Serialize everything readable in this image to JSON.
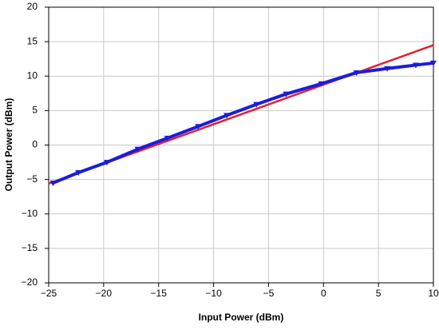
{
  "chart_data": {
    "type": "line",
    "x_label": "Input Power (dBm)",
    "y_label": "Output Power (dBm)",
    "xlim": [
      -25,
      10
    ],
    "ylim": [
      -20,
      20
    ],
    "xticks": [
      {
        "value": -25,
        "label": "−25"
      },
      {
        "value": -20,
        "label": "−20"
      },
      {
        "value": -15,
        "label": "−15"
      },
      {
        "value": -10,
        "label": "−10"
      },
      {
        "value": -5,
        "label": "−5"
      },
      0,
      5,
      10
    ],
    "yticks": [
      {
        "value": -20,
        "label": "−20"
      },
      {
        "value": -15,
        "label": "−15"
      },
      {
        "value": -10,
        "label": "−10"
      },
      {
        "value": -5,
        "label": "−5"
      },
      0,
      5,
      10,
      15,
      20
    ],
    "grid": true,
    "series": [
      {
        "color": "#e3202c",
        "x": [
          -25,
          10
        ],
        "values": [
          -5.6,
          14.5
        ]
      },
      {
        "color": "#1c1cdc",
        "marker": "triangle-down",
        "x": [
          -24.6,
          -22.3,
          -19.7,
          -16.9,
          -14.2,
          -11.4,
          -8.8,
          -6.1,
          -3.4,
          -0.2,
          3,
          5.8,
          8.4,
          10
        ],
        "values": [
          -5.5,
          -4.0,
          -2.5,
          -0.6,
          1.0,
          2.7,
          4.3,
          5.9,
          7.4,
          8.9,
          10.5,
          11.1,
          11.6,
          11.9
        ]
      }
    ]
  }
}
